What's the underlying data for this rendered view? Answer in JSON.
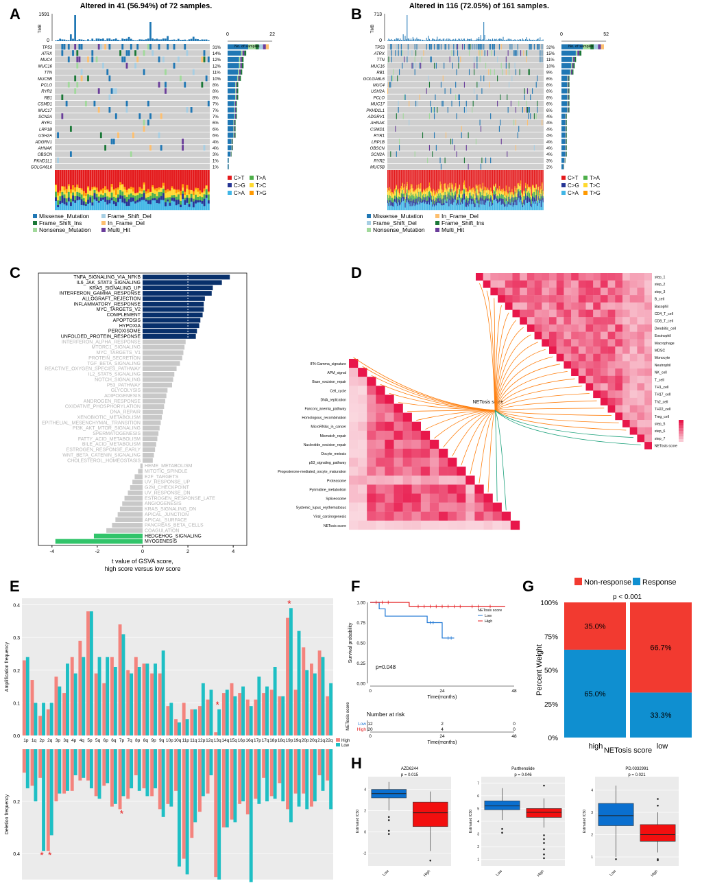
{
  "colors": {
    "grey_cell": "#cfcfcf",
    "missense": "#1f77b4",
    "frame_del": "#a6cee3",
    "frame_ins": "#1b7837",
    "inframe_del": "#fdbf6f",
    "nonsense": "#a1d99b",
    "multi": "#6a3d9a",
    "ct": "#e41a1c",
    "tg": "#ff9900",
    "tc": "#ffd92f",
    "ta": "#4daf4a",
    "cg": "#253494",
    "ca": "#41b6e6",
    "gsva_blue": "#08306b",
    "gsva_grey": "#c8c8c8",
    "gsva_green": "#31c46a",
    "heat_dark": "#e8174b",
    "heat_light": "#fbe3e8",
    "line_orange": "#ff7f0e",
    "line_green": "#1aa07a",
    "amp_pink": "#f4837d",
    "amp_teal": "#1ebfc4",
    "star": "#e81b1b",
    "km_low": "#1f77d4",
    "km_high": "#e41a1c",
    "resp_red": "#f23a30",
    "resp_blue": "#0f8fd0",
    "box_blue": "#0a6fcf",
    "box_red": "#f20f0f"
  },
  "panel_labels": [
    "A",
    "B",
    "C",
    "D",
    "E",
    "F",
    "G",
    "H"
  ],
  "panelA": {
    "title": "Altered in 41 (56.94%) of 72 samples.",
    "tmb_label": "TMB",
    "tmb_max": "1591",
    "tmb_min": "0",
    "samples_label": "No. of samples",
    "samples_min": "0",
    "samples_max": "22",
    "genes": [
      "TP53",
      "ATRX",
      "MUC4",
      "MUC16",
      "TTN",
      "MUC5B",
      "PCLO",
      "RYR2",
      "RB1",
      "CSMD1",
      "MUC17",
      "SCN2A",
      "RYR1",
      "LRP1B",
      "USH2A",
      "ADGRV1",
      "AHNAK",
      "OBSCN",
      "PKHD1L1",
      "GOLGA6L6"
    ],
    "pcts": [
      "31%",
      "14%",
      "12%",
      "12%",
      "11%",
      "10%",
      "8%",
      "8%",
      "8%",
      "7%",
      "7%",
      "7%",
      "6%",
      "6%",
      "6%",
      "4%",
      "4%",
      "3%",
      "1%",
      "1%"
    ],
    "legend": [
      "Missense_Mutation",
      "Frame_Shift_Del",
      "Frame_Shift_Ins",
      "In_Frame_Del",
      "Nonsense_Mutation",
      "Multi_Hit"
    ]
  },
  "panelB": {
    "title": "Altered in 116 (72.05%) of 161 samples.",
    "tmb_label": "TMB",
    "tmb_max": "713",
    "tmb_min": "0",
    "samples_label": "No. of samples",
    "samples_min": "0",
    "samples_max": "52",
    "genes": [
      "TP53",
      "ATRX",
      "TTN",
      "MUC16",
      "RB1",
      "GOLGA6L6",
      "MUC4",
      "USH2A",
      "PCLO",
      "MUC17",
      "PKHD1L1",
      "ADGRV1",
      "AHNAK",
      "CSMD1",
      "RYR1",
      "LRP1B",
      "OBSCN",
      "SCN2A",
      "RYR2",
      "MUC5B"
    ],
    "pcts": [
      "32%",
      "15%",
      "11%",
      "10%",
      "9%",
      "6%",
      "6%",
      "6%",
      "6%",
      "6%",
      "6%",
      "4%",
      "4%",
      "4%",
      "4%",
      "4%",
      "4%",
      "4%",
      "3%",
      "2%"
    ],
    "legend": [
      "Missense_Mutation",
      "In_Frame_Del",
      "Frame_Shift_Del",
      "Frame_Shift_Ins",
      "Nonsense_Mutation",
      "Multi_Hit"
    ]
  },
  "titv_legend": [
    "C>T",
    "T>A",
    "C>G",
    "T>C",
    "C>A",
    "T>G"
  ],
  "chart_data": [
    {
      "id": "C",
      "type": "bar",
      "orientation": "horizontal",
      "xlabel": "t value of GSVA score,",
      "xlabel2": "high score versus low score",
      "xlim": [
        -4.6,
        4.6
      ],
      "xticks": [
        "-4",
        "-2",
        "0",
        "2",
        "4"
      ],
      "categories": [
        "TNFA_SIGNALING_VIA_NFKB",
        "IL6_JAK_STAT3_SIGNALING",
        "KRAS_SIGNALING_UP",
        "INTERFERON_GAMMA_RESPONSE",
        "ALLOGRAFT_REJECTION",
        "INFLAMMATORY_RESPONSE",
        "MYC_TARGETS_V2",
        "COMPLEMENT",
        "APOPTOSIS",
        "HYPOXIA",
        "PEROXISOME",
        "UNFOLDED_PROTEIN_RESPONSE",
        "INTERFERON_ALPHA_RESPONSE",
        "MTORC1_SIGNALING",
        "MYC_TARGETS_V1",
        "PROTEIN_SECRETION",
        "TGF_BETA_SIGNALING",
        "REACTIVE_OXYGEN_SPECIES_PATHWAY",
        "IL2_STAT5_SIGNALING",
        "NOTCH_SIGNALING",
        "P53_PATHWAY",
        "GLYCOLYSIS",
        "ADIPOGENESIS",
        "ANDROGEN_RESPONSE",
        "OXIDATIVE_PHOSPHORYLATION",
        "DNA_REPAIR",
        "XENOBIOTIC_METABOLISM",
        "EPITHELIAL_MESENCHYMAL_TRANSITION",
        "PI3K_AKT_MTOR_SIGNALING",
        "SPERMATOGENESIS",
        "FATTY_ACID_METABOLISM",
        "BILE_ACID_METABOLISM",
        "ESTROGEN_RESPONSE_EARLY",
        "WNT_BETA_CATENIN_SIGNALING",
        "CHOLESTEROL_HOMEOSTASIS",
        "HEME_METABOLISM",
        "MITOTIC_SPINDLE",
        "E2F_TARGETS",
        "UV_RESPONSE_UP",
        "G2M_CHECKPOINT",
        "UV_RESPONSE_DN",
        "ESTROGEN_RESPONSE_LATE",
        "ANGIOGENESIS",
        "KRAS_SIGNALING_DN",
        "APICAL_JUNCTION",
        "APICAL_SURFACE",
        "PANCREAS_BETA_CELLS",
        "COAGULATION",
        "HEDGEHOG_SIGNALING",
        "MYOGENESIS"
      ],
      "values": [
        3.85,
        3.5,
        3.1,
        3.05,
        2.75,
        2.7,
        2.7,
        2.65,
        2.55,
        2.5,
        2.4,
        2.35,
        1.9,
        1.85,
        1.8,
        1.75,
        1.65,
        1.5,
        1.4,
        1.35,
        1.3,
        1.1,
        1.05,
        1.0,
        0.95,
        0.9,
        0.85,
        0.8,
        0.75,
        0.7,
        0.65,
        0.6,
        0.55,
        0.5,
        0.45,
        -0.1,
        -0.2,
        -0.35,
        -0.45,
        -0.55,
        -0.65,
        -0.8,
        -0.9,
        -1.0,
        -1.1,
        -1.2,
        -1.35,
        -1.6,
        -2.15,
        -3.85
      ]
    },
    {
      "id": "D",
      "type": "heatmap",
      "center_label": "NETosis score",
      "right_labels": [
        "step_1",
        "step_2",
        "step_3",
        "B_cell",
        "Basophil",
        "CD4_T_cell",
        "CD8_T_cell",
        "Dendritic_cell",
        "Eosinophil",
        "Macrophage",
        "MDSC",
        "Monocyte",
        "Neutrophil",
        "NK_cell",
        "T_cell",
        "TH1_cell",
        "TH17_cell",
        "Th2_cell",
        "TH22_cell",
        "Treg_cell",
        "step_5",
        "step_6",
        "step_7",
        "NETosis score"
      ],
      "left_labels": [
        "IFN-Gamma_signature",
        "APM_signal",
        "Base_excision_repair",
        "Cell_cycle",
        "DNA_replication",
        "Fanconi_anemia_pathway",
        "Homologous_recombination",
        "MicroRNAs_in_cancer",
        "Mismatch_repair",
        "Nucleotide_excision_repair",
        "Oocyte_meiosis",
        "p53_signaling_pathway",
        "Progesterone-mediated_oocyte_maturation",
        "Proteasome",
        "Pyrimidine_metabolism",
        "Spliceosome",
        "Systemic_lupus_erythematosus",
        "Viral_carcinogenesis",
        "NETosis score"
      ]
    },
    {
      "id": "E",
      "type": "bar",
      "categories": [
        "1p",
        "1q",
        "2p",
        "2q",
        "3p",
        "3q",
        "4p",
        "4q",
        "5p",
        "5q",
        "6p",
        "6q",
        "7p",
        "7q",
        "8p",
        "8q",
        "9p",
        "9q",
        "10p",
        "10q",
        "11p",
        "11q",
        "12p",
        "12q",
        "13q",
        "14q",
        "15q",
        "16p",
        "16q",
        "17p",
        "17q",
        "18p",
        "18q",
        "19p",
        "19q",
        "20p",
        "20q",
        "21q",
        "22q"
      ],
      "ylabel_top": "Amplification frequency",
      "ylabel_bottom": "Deletion frequency",
      "ylim_top": [
        0,
        0.42
      ],
      "yticks_top": [
        "0.0",
        "0.1",
        "0.2",
        "0.3",
        "0.4"
      ],
      "ylim_bottom": [
        0,
        0.5
      ],
      "yticks_bottom": [
        "0.2",
        "0.4"
      ],
      "legend": [
        "High",
        "Low"
      ],
      "series": [
        {
          "name": "High",
          "amp": [
            0.23,
            0.17,
            0.06,
            0.08,
            0.18,
            0.13,
            0.24,
            0.29,
            0.38,
            0.19,
            0.16,
            0.24,
            0.34,
            0.2,
            0.24,
            0.22,
            0.19,
            0.19,
            0.09,
            0.05,
            0.1,
            0.08,
            0.09,
            0.11,
            0.01,
            0.13,
            0.16,
            0.13,
            0.11,
            0.11,
            0.13,
            0.14,
            0.12,
            0.36,
            0.14,
            0.27,
            0.22,
            0.26,
            0.12
          ],
          "del": [
            0.09,
            0.14,
            0.11,
            0.39,
            0.2,
            0.17,
            0.16,
            0.12,
            0.12,
            0.18,
            0.14,
            0.22,
            0.23,
            0.19,
            0.1,
            0.15,
            0.18,
            0.23,
            0.21,
            0.16,
            0.42,
            0.34,
            0.24,
            0.17,
            0.49,
            0.3,
            0.27,
            0.21,
            0.25,
            0.19,
            0.11,
            0.18,
            0.13,
            0.23,
            0.17,
            0.17,
            0.22,
            0.1,
            0.12
          ]
        },
        {
          "name": "Low",
          "amp": [
            0.24,
            0.1,
            0.1,
            0.1,
            0.15,
            0.22,
            0.19,
            0.24,
            0.38,
            0.24,
            0.24,
            0.21,
            0.31,
            0.19,
            0.21,
            0.22,
            0.22,
            0.26,
            0.1,
            0.04,
            0.05,
            0.08,
            0.16,
            0.14,
            0.08,
            0.14,
            0.12,
            0.15,
            0.09,
            0.18,
            0.15,
            0.21,
            0.12,
            0.39,
            0.32,
            0.2,
            0.19,
            0.24,
            0.16
          ],
          "del": [
            0.15,
            0.2,
            0.39,
            0.33,
            0.17,
            0.16,
            0.1,
            0.11,
            0.15,
            0.19,
            0.13,
            0.21,
            0.18,
            0.15,
            0.16,
            0.18,
            0.15,
            0.26,
            0.22,
            0.45,
            0.48,
            0.28,
            0.18,
            0.1,
            0.5,
            0.3,
            0.28,
            0.2,
            0.51,
            0.21,
            0.2,
            0.19,
            0.2,
            0.28,
            0.22,
            0.23,
            0.2,
            0.16,
            0.23
          ]
        }
      ],
      "stars_amp": [
        "13q",
        "19p"
      ],
      "stars_del": [
        "2p",
        "2q",
        "7p",
        "16q"
      ]
    },
    {
      "id": "F",
      "type": "line",
      "ylabel": "Survival probability",
      "xlabel": "Time(months)",
      "yticks": [
        "0.00",
        "0.25",
        "0.50",
        "0.75",
        "1.00"
      ],
      "xticks": [
        "0",
        "24",
        "48"
      ],
      "pvalue": "p=0.048",
      "legend_title": "NETosis score",
      "series": [
        {
          "name": "Low",
          "points": [
            [
              0,
              1.0
            ],
            [
              3,
              0.92
            ],
            [
              5,
              0.83
            ],
            [
              18,
              0.83
            ],
            [
              19,
              0.75
            ],
            [
              23,
              0.75
            ],
            [
              24,
              0.56
            ],
            [
              28,
              0.56
            ]
          ]
        },
        {
          "name": "High",
          "points": [
            [
              0,
              1.0
            ],
            [
              12,
              1.0
            ],
            [
              13,
              0.95
            ],
            [
              45,
              0.95
            ]
          ]
        }
      ],
      "risk_title": "Number at risk",
      "risk_ylabel": "NETosis score",
      "risk": [
        {
          "name": "Low",
          "values": [
            "12",
            "2",
            "0"
          ]
        },
        {
          "name": "High",
          "values": [
            "20",
            "4",
            "0"
          ]
        }
      ]
    },
    {
      "id": "G",
      "type": "bar",
      "stacked": true,
      "categories": [
        "high",
        "low"
      ],
      "series": [
        {
          "name": "Non-response",
          "values": [
            35.0,
            66.7
          ],
          "labels": [
            "35.0%",
            "66.7%"
          ]
        },
        {
          "name": "Response",
          "values": [
            65.0,
            33.3
          ],
          "labels": [
            "65.0%",
            "33.3%"
          ]
        }
      ],
      "ylabel": "Percent Weight",
      "xlabel": "NETosis score",
      "pvalue": "p < 0.001",
      "yticks": [
        "0%",
        "25%",
        "50%",
        "75%",
        "100%"
      ]
    },
    {
      "id": "H",
      "type": "boxplot",
      "ylabel": "Estimated IC50",
      "plots": [
        {
          "title": "AZD6244",
          "pvalue": "p = 0.015",
          "categories": [
            "Low",
            "High"
          ],
          "yticks": [
            "-2",
            "0",
            "2",
            "4"
          ],
          "ylim": [
            -3.2,
            5.2
          ],
          "boxes": [
            {
              "q1": 3.2,
              "median": 3.6,
              "q3": 4.0,
              "min": 2.0,
              "max": 4.7
            },
            {
              "q1": 0.5,
              "median": 1.8,
              "q3": 2.8,
              "min": -1.8,
              "max": 3.8
            }
          ],
          "outliers": [
            [
              1.4,
              1.1,
              0.1,
              -0.2
            ],
            [
              -2.7
            ]
          ]
        },
        {
          "title": "Parthenolide",
          "pvalue": "p = 0.046",
          "categories": [
            "Low",
            "High"
          ],
          "yticks": [
            "1",
            "2",
            "3",
            "4",
            "5",
            "6",
            "7"
          ],
          "ylim": [
            0.5,
            7.5
          ],
          "boxes": [
            {
              "q1": 4.9,
              "median": 5.2,
              "q3": 5.6,
              "min": 4.1,
              "max": 6.6
            },
            {
              "q1": 4.3,
              "median": 4.7,
              "q3": 5.0,
              "min": 3.5,
              "max": 5.8
            }
          ],
          "outliers": [
            [
              3.4,
              3.1
            ],
            [
              6.8,
              2.9,
              2.6,
              2.3,
              1.8,
              1.4,
              1.1
            ]
          ]
        },
        {
          "title": "PD.0332991",
          "pvalue": "p = 0.021",
          "categories": [
            "Low",
            "High"
          ],
          "yticks": [
            "1",
            "2",
            "3",
            "4"
          ],
          "ylim": [
            0.6,
            4.6
          ],
          "boxes": [
            {
              "q1": 2.4,
              "median": 2.85,
              "q3": 3.4,
              "min": 1.0,
              "max": 4.2
            },
            {
              "q1": 1.7,
              "median": 2.0,
              "q3": 2.45,
              "min": 1.2,
              "max": 3.0
            }
          ],
          "outliers": [
            [
              0.9
            ],
            [
              3.6,
              3.3,
              0.9,
              0.85
            ]
          ]
        }
      ]
    }
  ]
}
